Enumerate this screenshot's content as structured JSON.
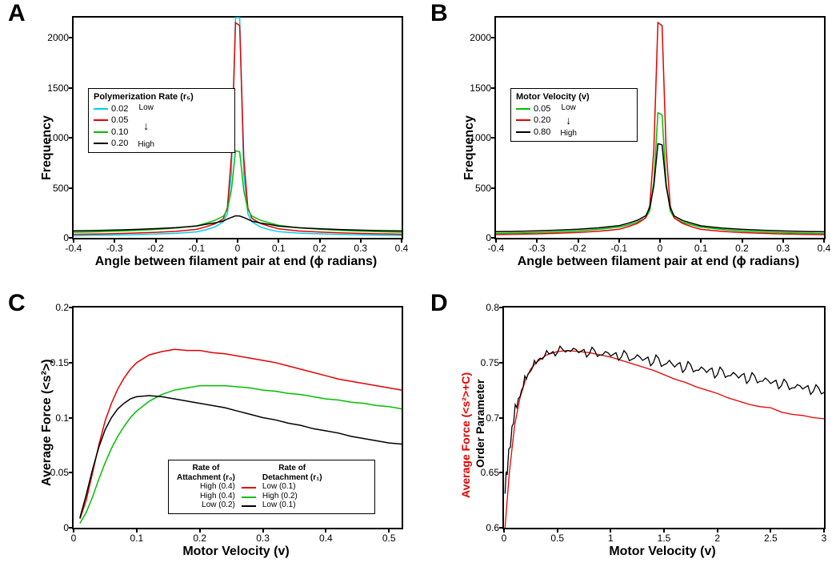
{
  "panels": {
    "A": {
      "label": "A"
    },
    "B": {
      "label": "B"
    },
    "C": {
      "label": "C"
    },
    "D": {
      "label": "D"
    }
  },
  "panelA": {
    "type": "line",
    "xlabel": "Angle between filament pair at end (ϕ radians)",
    "ylabel": "Frequency",
    "xlim": [
      -0.4,
      0.4
    ],
    "ylim": [
      0,
      2200
    ],
    "xticks": [
      -0.4,
      -0.3,
      -0.2,
      -0.1,
      0,
      0.1,
      0.2,
      0.3,
      0.4
    ],
    "yticks": [
      0,
      500,
      1000,
      1500,
      2000
    ],
    "line_width": 1.5,
    "axis_fontsize": 16,
    "tick_fontsize": 12,
    "legend": {
      "title": "Polymerization Rate (r₅)",
      "items": [
        {
          "label": "0.02",
          "color": "#00d0f0"
        },
        {
          "label": "0.05",
          "color": "#e60000"
        },
        {
          "label": "0.10",
          "color": "#00c000"
        },
        {
          "label": "0.20",
          "color": "#000000"
        }
      ],
      "anno_top": "Low",
      "anno_bot": "High"
    },
    "series": [
      {
        "name": "0.02",
        "color": "#00d0f0",
        "x": [
          -0.4,
          -0.35,
          -0.3,
          -0.25,
          -0.2,
          -0.15,
          -0.1,
          -0.078,
          -0.055,
          -0.035,
          -0.025,
          -0.015,
          -0.005,
          0.005,
          0.015,
          0.025,
          0.035,
          0.055,
          0.078,
          0.1,
          0.15,
          0.2,
          0.25,
          0.3,
          0.35,
          0.4
        ],
        "y": [
          20,
          25,
          28,
          32,
          38,
          45,
          60,
          80,
          110,
          160,
          240,
          650,
          2200,
          2200,
          640,
          240,
          160,
          110,
          82,
          62,
          47,
          40,
          34,
          30,
          26,
          22
        ]
      },
      {
        "name": "0.05",
        "color": "#e60000",
        "x": [
          -0.4,
          -0.35,
          -0.3,
          -0.25,
          -0.2,
          -0.15,
          -0.1,
          -0.078,
          -0.055,
          -0.035,
          -0.025,
          -0.015,
          -0.005,
          0.005,
          0.015,
          0.025,
          0.035,
          0.055,
          0.078,
          0.1,
          0.15,
          0.2,
          0.25,
          0.3,
          0.35,
          0.4
        ],
        "y": [
          35,
          38,
          42,
          48,
          55,
          65,
          85,
          110,
          140,
          190,
          300,
          820,
          2150,
          2120,
          800,
          300,
          195,
          145,
          115,
          90,
          68,
          58,
          50,
          44,
          40,
          36
        ]
      },
      {
        "name": "0.10",
        "color": "#00c000",
        "x": [
          -0.4,
          -0.35,
          -0.3,
          -0.25,
          -0.2,
          -0.15,
          -0.1,
          -0.078,
          -0.055,
          -0.035,
          -0.025,
          -0.015,
          -0.005,
          0.005,
          0.015,
          0.025,
          0.035,
          0.055,
          0.078,
          0.1,
          0.15,
          0.2,
          0.25,
          0.3,
          0.35,
          0.4
        ],
        "y": [
          55,
          60,
          66,
          74,
          84,
          98,
          120,
          145,
          175,
          215,
          280,
          480,
          870,
          860,
          475,
          280,
          218,
          178,
          150,
          125,
          100,
          86,
          75,
          67,
          61,
          56
        ]
      },
      {
        "name": "0.20",
        "color": "#000000",
        "x": [
          -0.4,
          -0.35,
          -0.3,
          -0.25,
          -0.2,
          -0.15,
          -0.1,
          -0.078,
          -0.055,
          -0.035,
          -0.025,
          -0.015,
          -0.005,
          0.005,
          0.015,
          0.025,
          0.035,
          0.055,
          0.078,
          0.1,
          0.15,
          0.2,
          0.25,
          0.3,
          0.35,
          0.4
        ],
        "y": [
          70,
          73,
          78,
          84,
          92,
          102,
          118,
          135,
          150,
          168,
          188,
          205,
          220,
          218,
          203,
          186,
          167,
          149,
          134,
          117,
          101,
          91,
          83,
          77,
          72,
          69
        ]
      }
    ]
  },
  "panelB": {
    "type": "line",
    "xlabel": "Angle between filament pair at end (ϕ radians)",
    "ylabel": "Frequency",
    "xlim": [
      -0.4,
      0.4
    ],
    "ylim": [
      0,
      2200
    ],
    "xticks": [
      -0.4,
      -0.3,
      -0.2,
      -0.1,
      0,
      0.1,
      0.2,
      0.3,
      0.4
    ],
    "yticks": [
      0,
      500,
      1000,
      1500,
      2000
    ],
    "line_width": 1.5,
    "axis_fontsize": 16,
    "tick_fontsize": 12,
    "legend": {
      "title": "Motor Velocity (v)",
      "items": [
        {
          "label": "0.05",
          "color": "#00c000"
        },
        {
          "label": "0.20",
          "color": "#e60000"
        },
        {
          "label": "0.80",
          "color": "#000000"
        }
      ],
      "anno_top": "Low",
      "anno_bot": "High"
    },
    "series": [
      {
        "name": "0.05",
        "color": "#00c000",
        "x": [
          -0.4,
          -0.35,
          -0.3,
          -0.25,
          -0.2,
          -0.15,
          -0.1,
          -0.078,
          -0.055,
          -0.035,
          -0.025,
          -0.015,
          -0.005,
          0.005,
          0.015,
          0.025,
          0.035,
          0.055,
          0.078,
          0.1,
          0.15,
          0.2,
          0.25,
          0.3,
          0.35,
          0.4
        ],
        "y": [
          45,
          48,
          53,
          60,
          70,
          85,
          108,
          130,
          158,
          200,
          270,
          560,
          1250,
          1230,
          550,
          268,
          198,
          156,
          129,
          107,
          84,
          69,
          59,
          52,
          47,
          44
        ]
      },
      {
        "name": "0.20",
        "color": "#e60000",
        "x": [
          -0.4,
          -0.35,
          -0.3,
          -0.25,
          -0.2,
          -0.15,
          -0.1,
          -0.078,
          -0.055,
          -0.035,
          -0.025,
          -0.015,
          -0.005,
          0.005,
          0.015,
          0.025,
          0.035,
          0.055,
          0.078,
          0.1,
          0.15,
          0.2,
          0.25,
          0.3,
          0.35,
          0.4
        ],
        "y": [
          33,
          36,
          40,
          46,
          54,
          66,
          86,
          112,
          145,
          200,
          320,
          880,
          2150,
          2120,
          870,
          318,
          198,
          144,
          110,
          85,
          65,
          53,
          45,
          39,
          35,
          32
        ]
      },
      {
        "name": "0.80",
        "color": "#000000",
        "x": [
          -0.4,
          -0.35,
          -0.3,
          -0.25,
          -0.2,
          -0.15,
          -0.1,
          -0.078,
          -0.055,
          -0.035,
          -0.025,
          -0.015,
          -0.005,
          0.005,
          0.015,
          0.025,
          0.035,
          0.055,
          0.078,
          0.1,
          0.15,
          0.2,
          0.25,
          0.3,
          0.35,
          0.4
        ],
        "y": [
          62,
          65,
          70,
          77,
          86,
          100,
          122,
          146,
          176,
          220,
          300,
          520,
          940,
          930,
          515,
          298,
          218,
          174,
          145,
          120,
          98,
          85,
          76,
          69,
          64,
          61
        ]
      }
    ]
  },
  "panelC": {
    "type": "line",
    "xlabel": "Motor Velocity (v)",
    "ylabel": "Average Force (<s²>)",
    "xlim": [
      0,
      0.52
    ],
    "ylim": [
      0,
      0.2
    ],
    "xticks": [
      0,
      0.1,
      0.2,
      0.3,
      0.4,
      0.5
    ],
    "yticks": [
      0,
      0.05,
      0.1,
      0.15,
      0.2
    ],
    "line_width": 1.5,
    "axis_fontsize": 16,
    "tick_fontsize": 12,
    "legend": {
      "col1_title": "Rate of\nAttachment (r₀)",
      "col2_title": "Rate of\nDetachment (r₁)",
      "rows": [
        {
          "col1": "High (0.4)",
          "color": "#e60000",
          "col2": "Low (0.1)"
        },
        {
          "col1": "High (0.4)",
          "color": "#00c000",
          "col2": "High (0.2)"
        },
        {
          "col1": "Low (0.2)",
          "color": "#000000",
          "col2": "Low (0.1)"
        }
      ]
    },
    "series": [
      {
        "name": "red",
        "color": "#e60000",
        "x": [
          0.01,
          0.02,
          0.03,
          0.04,
          0.05,
          0.06,
          0.07,
          0.08,
          0.09,
          0.1,
          0.12,
          0.14,
          0.16,
          0.18,
          0.2,
          0.22,
          0.24,
          0.26,
          0.28,
          0.3,
          0.32,
          0.34,
          0.36,
          0.38,
          0.4,
          0.42,
          0.44,
          0.46,
          0.48,
          0.5,
          0.52
        ],
        "y": [
          0.008,
          0.025,
          0.05,
          0.075,
          0.097,
          0.113,
          0.126,
          0.136,
          0.144,
          0.15,
          0.157,
          0.16,
          0.162,
          0.161,
          0.161,
          0.159,
          0.158,
          0.156,
          0.154,
          0.152,
          0.15,
          0.147,
          0.144,
          0.141,
          0.138,
          0.135,
          0.133,
          0.131,
          0.129,
          0.127,
          0.125
        ]
      },
      {
        "name": "green",
        "color": "#00c000",
        "x": [
          0.01,
          0.02,
          0.03,
          0.04,
          0.05,
          0.06,
          0.07,
          0.08,
          0.09,
          0.1,
          0.12,
          0.14,
          0.16,
          0.18,
          0.2,
          0.22,
          0.24,
          0.26,
          0.28,
          0.3,
          0.32,
          0.34,
          0.36,
          0.38,
          0.4,
          0.42,
          0.44,
          0.46,
          0.48,
          0.5,
          0.52
        ],
        "y": [
          0.004,
          0.014,
          0.028,
          0.044,
          0.059,
          0.072,
          0.083,
          0.092,
          0.1,
          0.106,
          0.115,
          0.121,
          0.125,
          0.127,
          0.129,
          0.129,
          0.129,
          0.128,
          0.127,
          0.125,
          0.124,
          0.122,
          0.121,
          0.119,
          0.117,
          0.116,
          0.114,
          0.113,
          0.111,
          0.11,
          0.108
        ]
      },
      {
        "name": "black",
        "color": "#000000",
        "x": [
          0.01,
          0.02,
          0.03,
          0.04,
          0.05,
          0.06,
          0.07,
          0.08,
          0.09,
          0.1,
          0.12,
          0.14,
          0.16,
          0.18,
          0.2,
          0.22,
          0.24,
          0.26,
          0.28,
          0.3,
          0.32,
          0.34,
          0.36,
          0.38,
          0.4,
          0.42,
          0.44,
          0.46,
          0.48,
          0.5,
          0.52
        ],
        "y": [
          0.009,
          0.03,
          0.053,
          0.073,
          0.089,
          0.1,
          0.108,
          0.113,
          0.117,
          0.119,
          0.12,
          0.119,
          0.117,
          0.115,
          0.113,
          0.111,
          0.109,
          0.106,
          0.103,
          0.1,
          0.098,
          0.095,
          0.093,
          0.09,
          0.088,
          0.086,
          0.083,
          0.081,
          0.079,
          0.077,
          0.076
        ]
      }
    ]
  },
  "panelD": {
    "type": "line",
    "xlabel": "Motor Velocity (v)",
    "ylabel_black": "Order Parameter",
    "ylabel_red": "Average Force (<s²>+C)",
    "xlim": [
      0,
      3.0
    ],
    "ylim": [
      0.6,
      0.8
    ],
    "xticks": [
      0,
      0.5,
      1,
      1.5,
      2,
      2.5,
      3
    ],
    "yticks": [
      0.6,
      0.65,
      0.7,
      0.75,
      0.8
    ],
    "line_width": 1.3,
    "axis_fontsize": 16,
    "tick_fontsize": 12,
    "series_smooth": {
      "name": "force",
      "color": "#e60000",
      "x": [
        0.01,
        0.05,
        0.1,
        0.15,
        0.2,
        0.25,
        0.3,
        0.4,
        0.5,
        0.6,
        0.7,
        0.8,
        0.9,
        1.0,
        1.1,
        1.2,
        1.3,
        1.4,
        1.5,
        1.6,
        1.7,
        1.8,
        1.9,
        2.0,
        2.1,
        2.2,
        2.3,
        2.4,
        2.5,
        2.6,
        2.7,
        2.8,
        2.9,
        3.0
      ],
      "y": [
        0.6,
        0.65,
        0.693,
        0.718,
        0.734,
        0.744,
        0.75,
        0.757,
        0.76,
        0.761,
        0.76,
        0.759,
        0.757,
        0.755,
        0.752,
        0.749,
        0.746,
        0.743,
        0.739,
        0.735,
        0.732,
        0.728,
        0.725,
        0.722,
        0.718,
        0.715,
        0.712,
        0.71,
        0.709,
        0.705,
        0.703,
        0.702,
        0.7,
        0.699
      ]
    },
    "series_noisy": {
      "name": "order",
      "color": "#000000",
      "x": [
        0.01,
        0.03,
        0.06,
        0.09,
        0.12,
        0.15,
        0.18,
        0.21,
        0.24,
        0.27,
        0.3,
        0.34,
        0.38,
        0.42,
        0.46,
        0.5,
        0.55,
        0.6,
        0.65,
        0.7,
        0.75,
        0.8,
        0.85,
        0.9,
        0.95,
        1.0,
        1.05,
        1.1,
        1.15,
        1.2,
        1.25,
        1.3,
        1.35,
        1.4,
        1.45,
        1.5,
        1.55,
        1.6,
        1.65,
        1.7,
        1.75,
        1.8,
        1.85,
        1.9,
        1.95,
        2.0,
        2.05,
        2.1,
        2.15,
        2.2,
        2.25,
        2.3,
        2.35,
        2.4,
        2.45,
        2.5,
        2.55,
        2.6,
        2.65,
        2.7,
        2.75,
        2.8,
        2.85,
        2.9,
        2.95,
        3.0
      ],
      "y": [
        0.631,
        0.648,
        0.673,
        0.695,
        0.709,
        0.719,
        0.728,
        0.735,
        0.741,
        0.746,
        0.749,
        0.754,
        0.756,
        0.758,
        0.76,
        0.759,
        0.762,
        0.761,
        0.763,
        0.759,
        0.762,
        0.758,
        0.761,
        0.757,
        0.76,
        0.756,
        0.759,
        0.755,
        0.758,
        0.753,
        0.757,
        0.752,
        0.755,
        0.75,
        0.754,
        0.748,
        0.752,
        0.746,
        0.75,
        0.744,
        0.748,
        0.743,
        0.746,
        0.741,
        0.745,
        0.739,
        0.743,
        0.738,
        0.741,
        0.736,
        0.74,
        0.734,
        0.738,
        0.733,
        0.736,
        0.731,
        0.734,
        0.729,
        0.732,
        0.727,
        0.73,
        0.726,
        0.729,
        0.724,
        0.727,
        0.723
      ]
    }
  }
}
